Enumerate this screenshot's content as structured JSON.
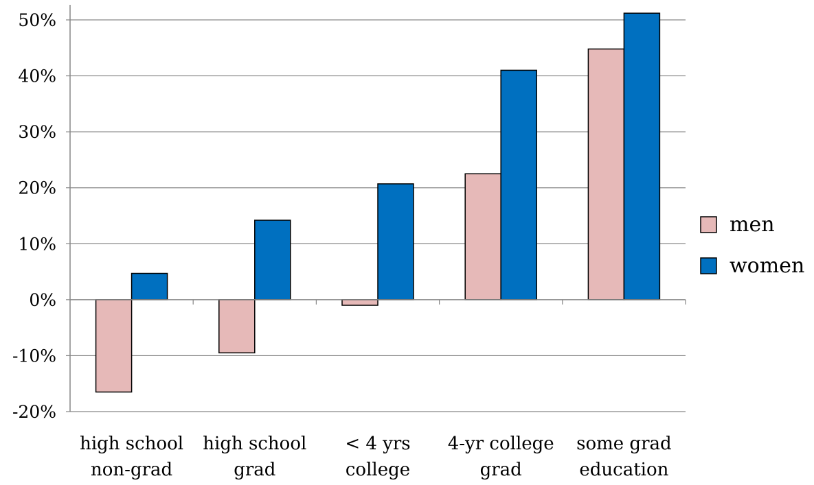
{
  "chart_data": {
    "type": "bar",
    "categories": [
      [
        "high school",
        "non-grad"
      ],
      [
        "high school",
        "grad"
      ],
      [
        "< 4 yrs",
        "college"
      ],
      [
        "4-yr college",
        "grad"
      ],
      [
        "some grad",
        "education"
      ]
    ],
    "series": [
      {
        "name": "men",
        "color": "#e6b9b8",
        "values": [
          -16.5,
          -9.5,
          -1.0,
          22.5,
          44.8
        ]
      },
      {
        "name": "women",
        "color": "#0070c0",
        "values": [
          4.7,
          14.2,
          20.7,
          41.0,
          51.2
        ]
      }
    ],
    "yticks": [
      "-20%",
      "-10%",
      "0%",
      "10%",
      "20%",
      "30%",
      "40%",
      "50%"
    ],
    "ylim": [
      -20,
      50
    ],
    "ytick_step": 10,
    "grid": true,
    "legend_position": "right",
    "title": "",
    "xlabel": "",
    "ylabel": ""
  }
}
